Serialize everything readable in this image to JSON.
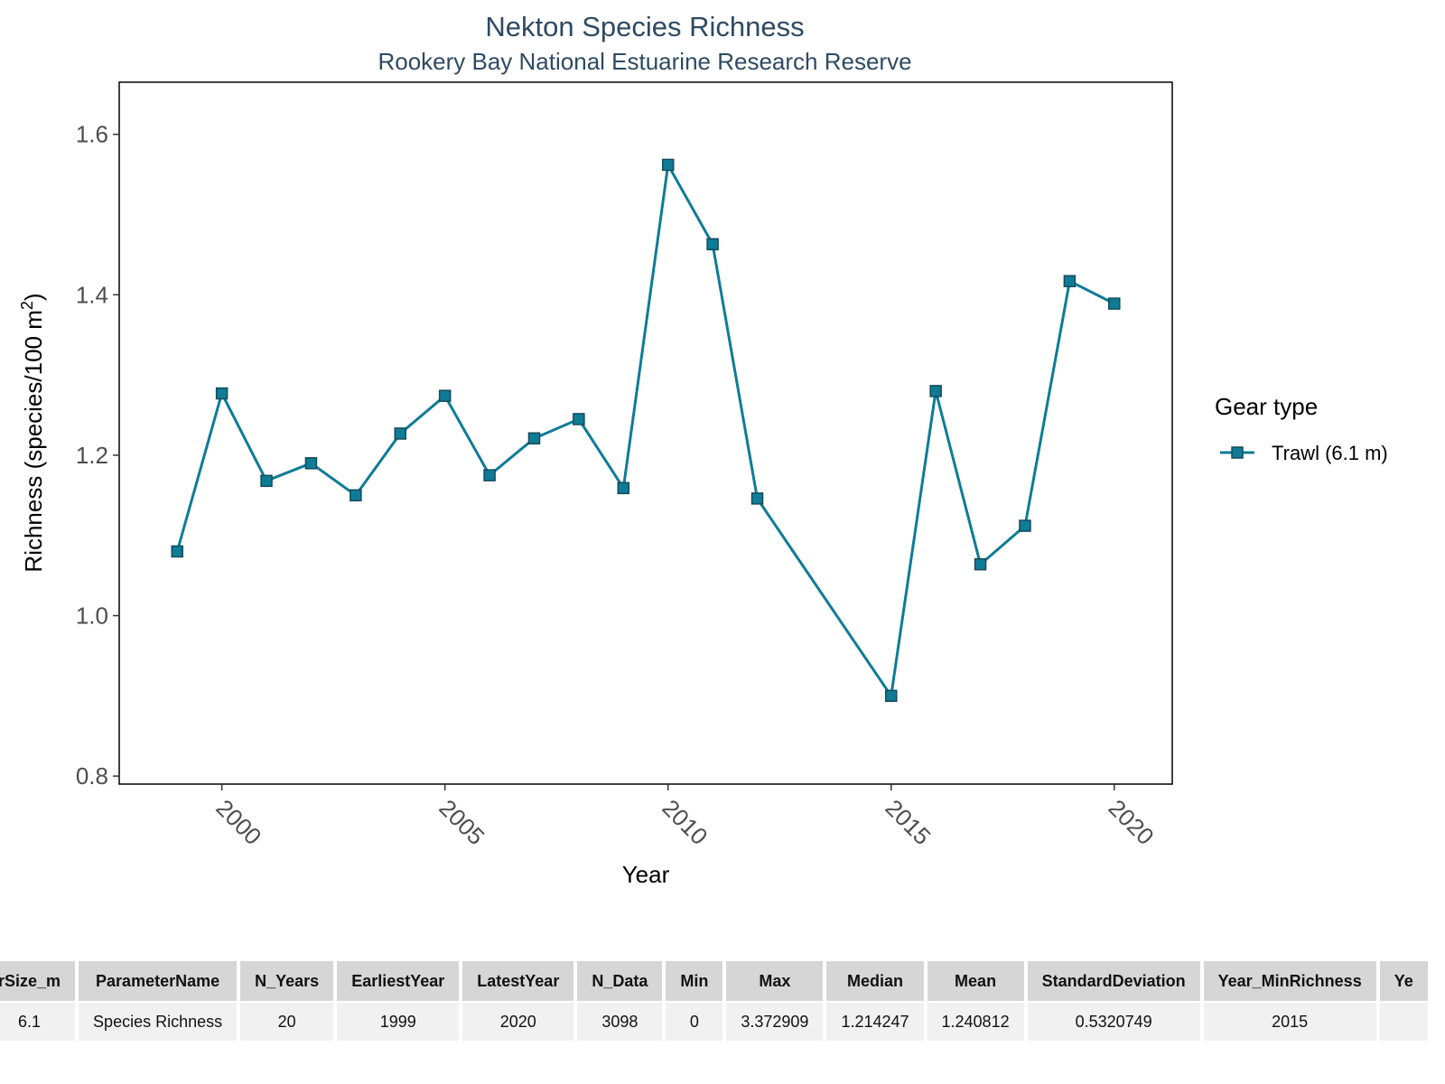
{
  "chart_data": {
    "type": "line",
    "title": "Nekton Species Richness",
    "subtitle": "Rookery Bay National Estuarine Research Reserve",
    "xlabel": "Year",
    "ylabel_main": "Richness (species/100 m",
    "ylabel_sup": "2",
    "ylabel_end": ")",
    "xlim": [
      1997.7,
      2021.3
    ],
    "ylim": [
      0.79,
      1.665
    ],
    "x_ticks": [
      2000,
      2005,
      2010,
      2015,
      2020
    ],
    "y_ticks": [
      "0.8",
      "1.0",
      "1.2",
      "1.4",
      "1.6"
    ],
    "legend_title": "Gear type",
    "legend_position": "right",
    "series": [
      {
        "name": "Trawl (6.1 m)",
        "color": "#0e7c96",
        "marker": "square",
        "x": [
          1999,
          2000,
          2001,
          2002,
          2003,
          2004,
          2005,
          2006,
          2007,
          2008,
          2009,
          2010,
          2011,
          2012,
          2015,
          2016,
          2017,
          2018,
          2019,
          2020
        ],
        "y": [
          1.08,
          1.277,
          1.168,
          1.19,
          1.15,
          1.227,
          1.274,
          1.175,
          1.221,
          1.245,
          1.159,
          1.562,
          1.463,
          1.146,
          0.9,
          1.28,
          1.064,
          1.112,
          1.417,
          1.389
        ]
      }
    ]
  },
  "table": {
    "headers": [
      "rSize_m",
      "ParameterName",
      "N_Years",
      "EarliestYear",
      "LatestYear",
      "N_Data",
      "Min",
      "Max",
      "Median",
      "Mean",
      "StandardDeviation",
      "Year_MinRichness",
      "Ye"
    ],
    "rows": [
      [
        "6.1",
        "Species Richness",
        "20",
        "1999",
        "2020",
        "3098",
        "0",
        "3.372909",
        "1.214247",
        "1.240812",
        "0.5320749",
        "2015",
        ""
      ]
    ]
  }
}
